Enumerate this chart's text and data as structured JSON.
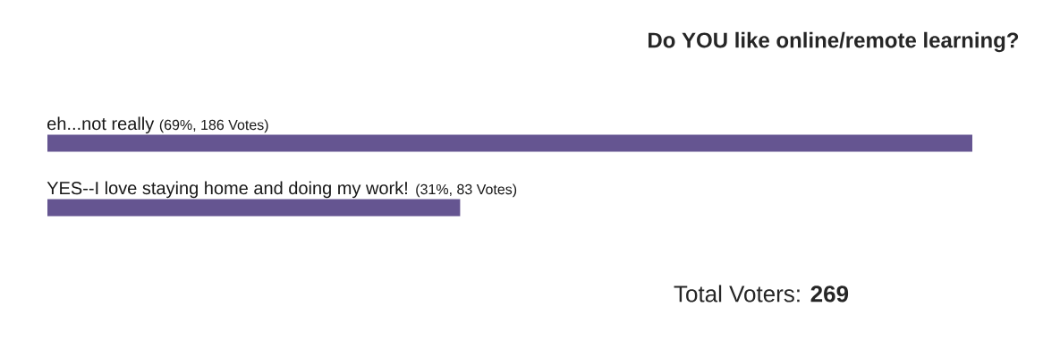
{
  "chart_data": {
    "type": "bar",
    "orientation": "horizontal",
    "title": "Do YOU like online/remote learning?",
    "categories": [
      "eh...not really",
      "YES--I love staying home and doing my work!"
    ],
    "values": [
      186,
      83
    ],
    "value_labels": [
      "(69%, 186 Votes)",
      "(31%, 83 Votes)"
    ],
    "color": "#655591",
    "annotations": [
      "Total Voters: **269**"
    ]
  }
}
